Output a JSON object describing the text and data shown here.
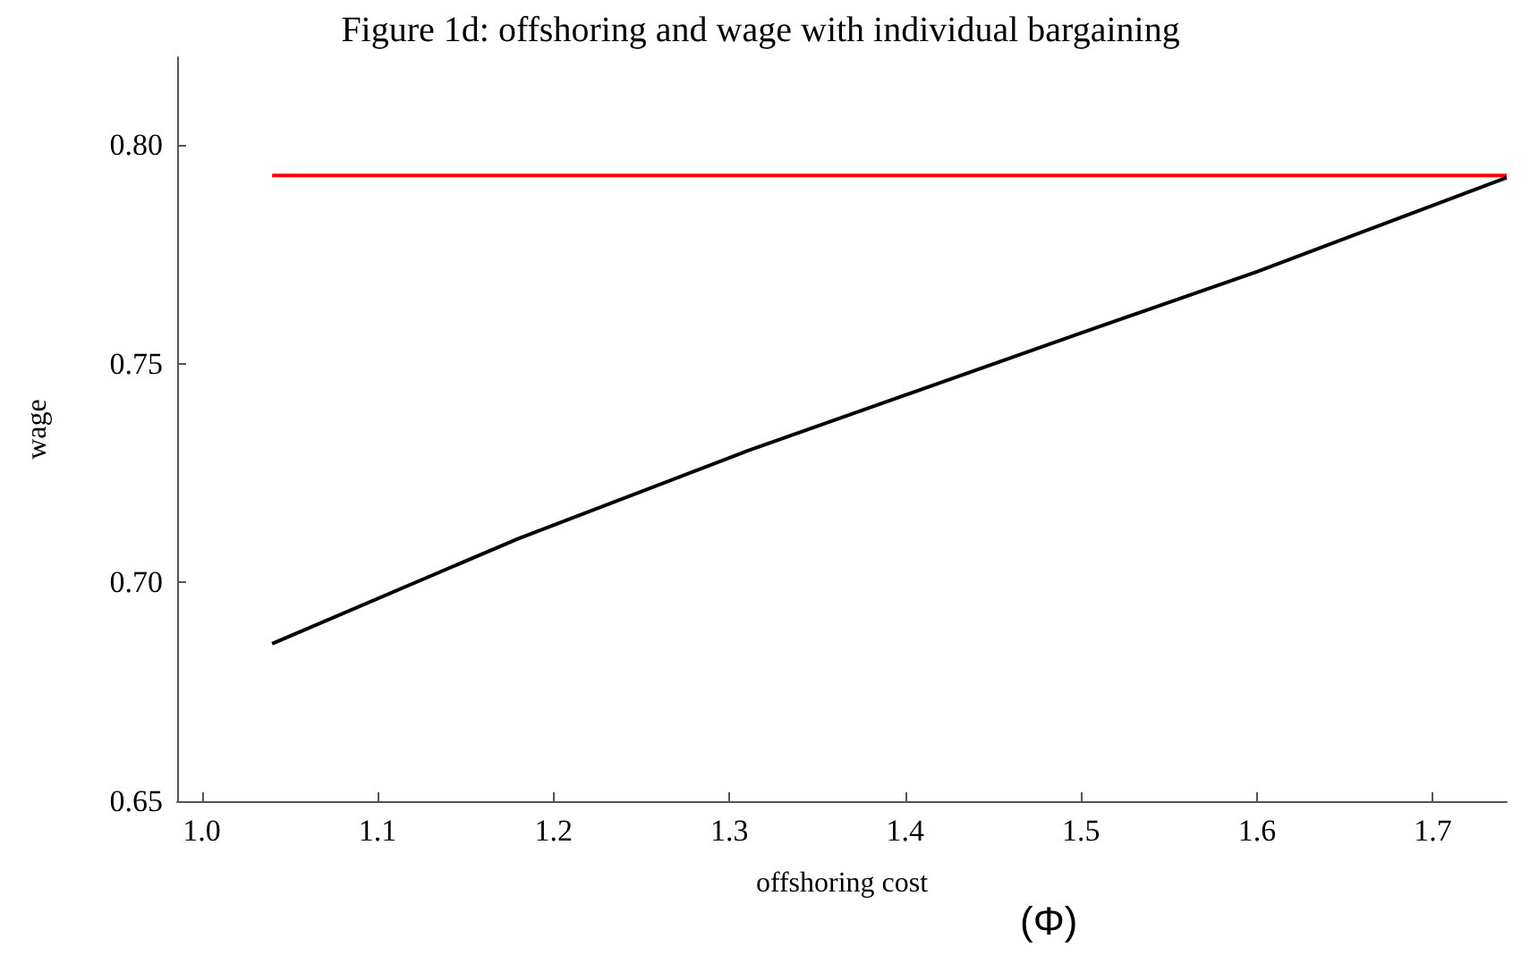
{
  "chart_data": {
    "type": "line",
    "title": "Figure 1d: offshoring and wage with individual bargaining",
    "xlabel": "offshoring cost",
    "ylabel": "wage",
    "annotations": [
      "(Φ)"
    ],
    "series": [
      {
        "color": "#ff0000",
        "x": [
          1.04,
          1.742
        ],
        "values": [
          0.793,
          0.793
        ]
      },
      {
        "color": "#000000",
        "x": [
          1.04,
          1.18,
          1.31,
          1.5,
          1.6,
          1.742
        ],
        "values": [
          0.686,
          0.71,
          0.73,
          0.757,
          0.771,
          0.7925
        ]
      }
    ],
    "xlim": [
      0.986,
      1.742
    ],
    "xticks": [
      {
        "value": 1.0,
        "label": "1.0"
      },
      1.1,
      1.2,
      1.3,
      1.4,
      1.5,
      1.6,
      1.7
    ],
    "ylim": [
      0.65,
      0.82
    ],
    "yticks": [
      {
        "value": 0.65,
        "label": "0.65"
      },
      {
        "value": 0.7,
        "label": "0.70"
      },
      {
        "value": 0.75,
        "label": "0.75"
      },
      {
        "value": 0.8,
        "label": "0.80"
      }
    ],
    "grid": false,
    "marker": "none",
    "line_style": "solid"
  }
}
